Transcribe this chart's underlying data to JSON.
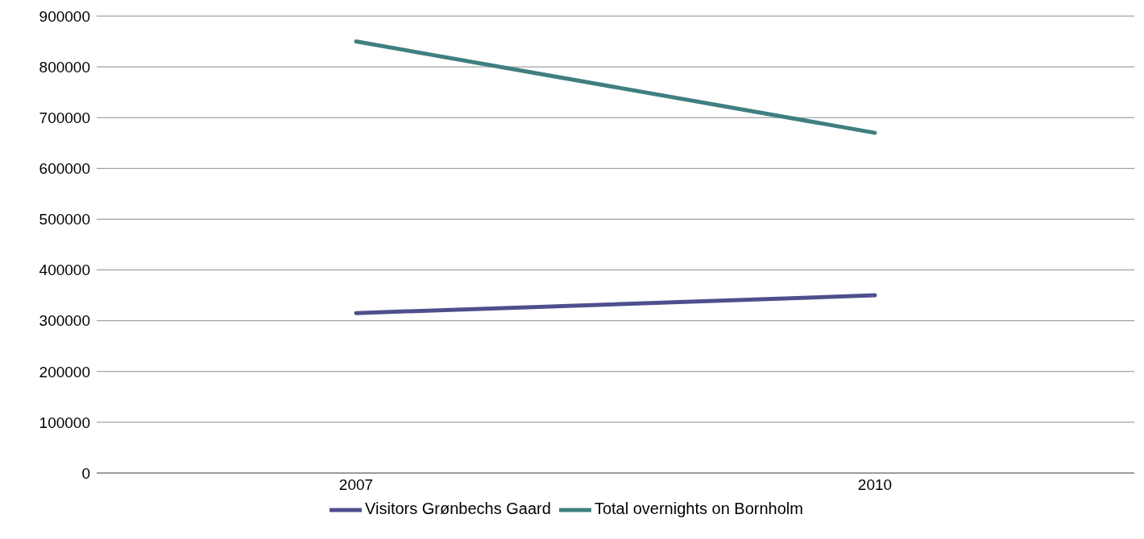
{
  "chart_data": {
    "type": "line",
    "categories": [
      "2007",
      "2010"
    ],
    "series": [
      {
        "name": "Visitors Grønbechs Gaard",
        "color": "#4e4f8c",
        "values": [
          315000,
          350000
        ]
      },
      {
        "name": "Total overnights on Bornholm",
        "color": "#3f7f80",
        "values": [
          850000,
          670000
        ]
      }
    ],
    "ylim": [
      0,
      900000
    ],
    "yticks": [
      0,
      100000,
      200000,
      300000,
      400000,
      500000,
      600000,
      700000,
      800000,
      900000
    ],
    "grid": "y",
    "legend": "bottom",
    "marker": "none"
  }
}
